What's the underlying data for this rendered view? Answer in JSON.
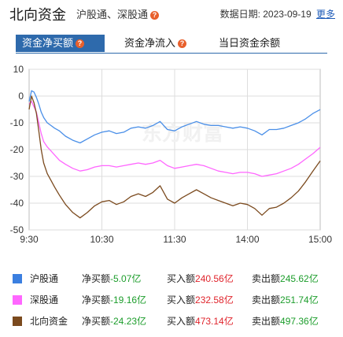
{
  "header": {
    "title": "北向资金",
    "subtitle": "沪股通、深股通",
    "date_label": "数据日期:",
    "date_value": "2023-09-19",
    "more_label": "更多"
  },
  "tabs": [
    {
      "label": "资金净买额",
      "active": true,
      "help": true
    },
    {
      "label": "资金净流入",
      "active": false,
      "help": true
    },
    {
      "label": "当日资金余额",
      "active": false,
      "help": false
    }
  ],
  "watermark": "东方财富",
  "chart_data": {
    "type": "line",
    "x_ticks": [
      "9:30",
      "10:30",
      "11:30",
      "14:00",
      "15:00"
    ],
    "y_ticks": [
      10,
      0,
      -10,
      -20,
      -30,
      -40,
      -50
    ],
    "ylim": [
      -50,
      10
    ],
    "x_domain": [
      0,
      240
    ],
    "grid": true,
    "x": [
      0,
      2,
      4,
      6,
      8,
      10,
      12,
      15,
      18,
      21,
      25,
      30,
      36,
      42,
      48,
      54,
      60,
      66,
      72,
      78,
      84,
      90,
      96,
      102,
      108,
      114,
      120,
      126,
      132,
      138,
      144,
      150,
      156,
      162,
      168,
      174,
      180,
      186,
      192,
      198,
      204,
      210,
      216,
      222,
      228,
      234,
      240
    ],
    "series": [
      {
        "name": "沪股通",
        "color": "#4a8fe8",
        "values": [
          -2,
          2,
          1.5,
          -0.5,
          -3,
          -6,
          -8,
          -10,
          -11,
          -12,
          -13,
          -15,
          -16.5,
          -17.5,
          -16,
          -14.5,
          -13.5,
          -13,
          -14,
          -13.5,
          -12,
          -11.5,
          -12,
          -11,
          -9.5,
          -12.5,
          -13,
          -11.5,
          -10.5,
          -9.5,
          -10.5,
          -11,
          -11,
          -11.5,
          -12,
          -11.5,
          -12,
          -13,
          -14.5,
          -12.5,
          -12.5,
          -12,
          -11,
          -10,
          -8.5,
          -6.5,
          -5.07
        ]
      },
      {
        "name": "深股通",
        "color": "#ff66ff",
        "values": [
          -3,
          -2,
          -4,
          -6,
          -10,
          -14,
          -17,
          -19,
          -20.5,
          -22,
          -24,
          -25.5,
          -27,
          -28,
          -27.5,
          -26.5,
          -26,
          -26,
          -26.5,
          -26,
          -25.5,
          -25,
          -25.5,
          -25,
          -24,
          -26,
          -27,
          -26.5,
          -26,
          -25.5,
          -26,
          -27,
          -28,
          -28.5,
          -29,
          -28.5,
          -28.5,
          -29,
          -30,
          -29.5,
          -29,
          -28,
          -27,
          -25.5,
          -23.5,
          -21.5,
          -19.16
        ]
      },
      {
        "name": "北向资金",
        "color": "#7b4a1e",
        "values": [
          -5,
          0,
          -2.5,
          -6.5,
          -13,
          -20,
          -25,
          -29,
          -31.5,
          -34,
          -37,
          -40.5,
          -43.5,
          -45.5,
          -43.5,
          -41,
          -39.5,
          -39,
          -40.5,
          -39.5,
          -37.5,
          -36.5,
          -37.5,
          -36,
          -33.5,
          -38.5,
          -40,
          -38,
          -36.5,
          -35,
          -36.5,
          -38,
          -39,
          -40,
          -41,
          -40,
          -40.5,
          -42,
          -44.5,
          -42,
          -41.5,
          -40,
          -38,
          -35.5,
          -32,
          -28,
          -24.23
        ]
      }
    ]
  },
  "legend": [
    {
      "color": "#3b7fe0",
      "name": "沪股通",
      "net_label": "净买额",
      "net_value": "-5.07亿",
      "buy_label": "买入额",
      "buy_value": "240.56亿",
      "sell_label": "卖出额",
      "sell_value": "245.62亿"
    },
    {
      "color": "#ff66ff",
      "name": "深股通",
      "net_label": "净买额",
      "net_value": "-19.16亿",
      "buy_label": "买入额",
      "buy_value": "232.58亿",
      "sell_label": "卖出额",
      "sell_value": "251.74亿"
    },
    {
      "color": "#7b4a1e",
      "name": "北向资金",
      "net_label": "净买额",
      "net_value": "-24.23亿",
      "buy_label": "买入额",
      "buy_value": "473.14亿",
      "sell_label": "卖出额",
      "sell_value": "497.36亿"
    }
  ]
}
